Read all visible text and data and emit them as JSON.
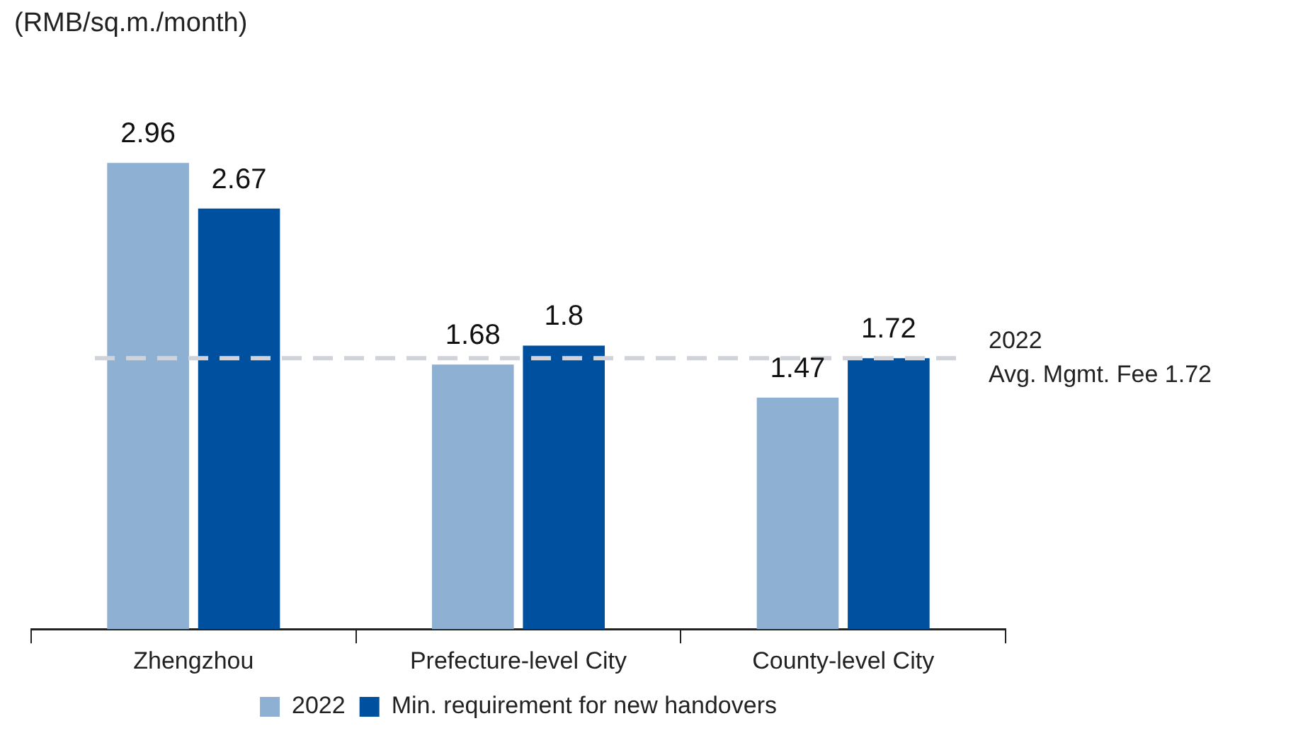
{
  "chart_data": {
    "type": "bar",
    "ylabel": "(RMB/sq.m./month)",
    "categories": [
      "Zhengzhou",
      "Prefecture-level City",
      "County-level City"
    ],
    "series": [
      {
        "name": "2022",
        "color": "#8eb0d2",
        "values": [
          2.96,
          1.68,
          1.47
        ]
      },
      {
        "name": "Min. requirement for new handovers",
        "color": "#0050a0",
        "values": [
          2.67,
          1.8,
          1.72
        ]
      }
    ],
    "data_labels": true,
    "tick_labels": "x",
    "grid": false,
    "legend": "bottom",
    "ref_lines": [
      {
        "axis": "y",
        "value": 1.72,
        "label": "2022\nAvg. Mgmt. Fee 1.72",
        "color": "#d0d4da",
        "line_style": "dashed"
      }
    ]
  }
}
